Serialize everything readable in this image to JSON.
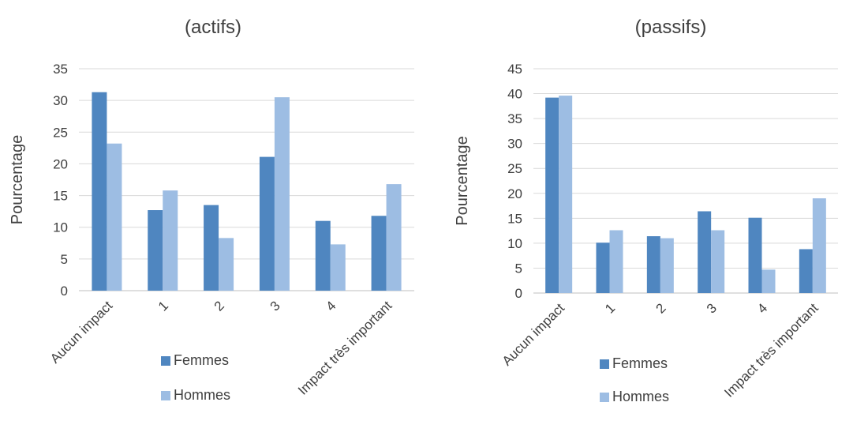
{
  "chart_data": [
    {
      "type": "bar",
      "title": "(actifs)",
      "ylabel": "Pourcentage",
      "xlabel": "",
      "ylim": [
        0,
        35
      ],
      "ytick_step": 5,
      "grid": true,
      "legend_position": "bottom",
      "categories": [
        "Aucun impact",
        "1",
        "2",
        "3",
        "4",
        "Impact très important"
      ],
      "series": [
        {
          "name": "Femmes",
          "color": "#4f86c0",
          "values": [
            31.3,
            12.7,
            13.5,
            21.1,
            11.0,
            11.8
          ]
        },
        {
          "name": "Hommes",
          "color": "#9dbde3",
          "values": [
            23.2,
            15.8,
            8.3,
            30.5,
            7.3,
            16.8
          ]
        }
      ]
    },
    {
      "type": "bar",
      "title": "(passifs)",
      "ylabel": "Pourcentage",
      "xlabel": "",
      "ylim": [
        0,
        45
      ],
      "ytick_step": 5,
      "grid": true,
      "legend_position": "bottom",
      "categories": [
        "Aucun impact",
        "1",
        "2",
        "3",
        "4",
        "Impact très important"
      ],
      "series": [
        {
          "name": "Femmes",
          "color": "#4f86c0",
          "values": [
            39.2,
            10.1,
            11.4,
            16.4,
            15.1,
            8.8
          ]
        },
        {
          "name": "Hommes",
          "color": "#9dbde3",
          "values": [
            39.6,
            12.6,
            11.0,
            12.6,
            4.7,
            19.0
          ]
        }
      ]
    }
  ]
}
